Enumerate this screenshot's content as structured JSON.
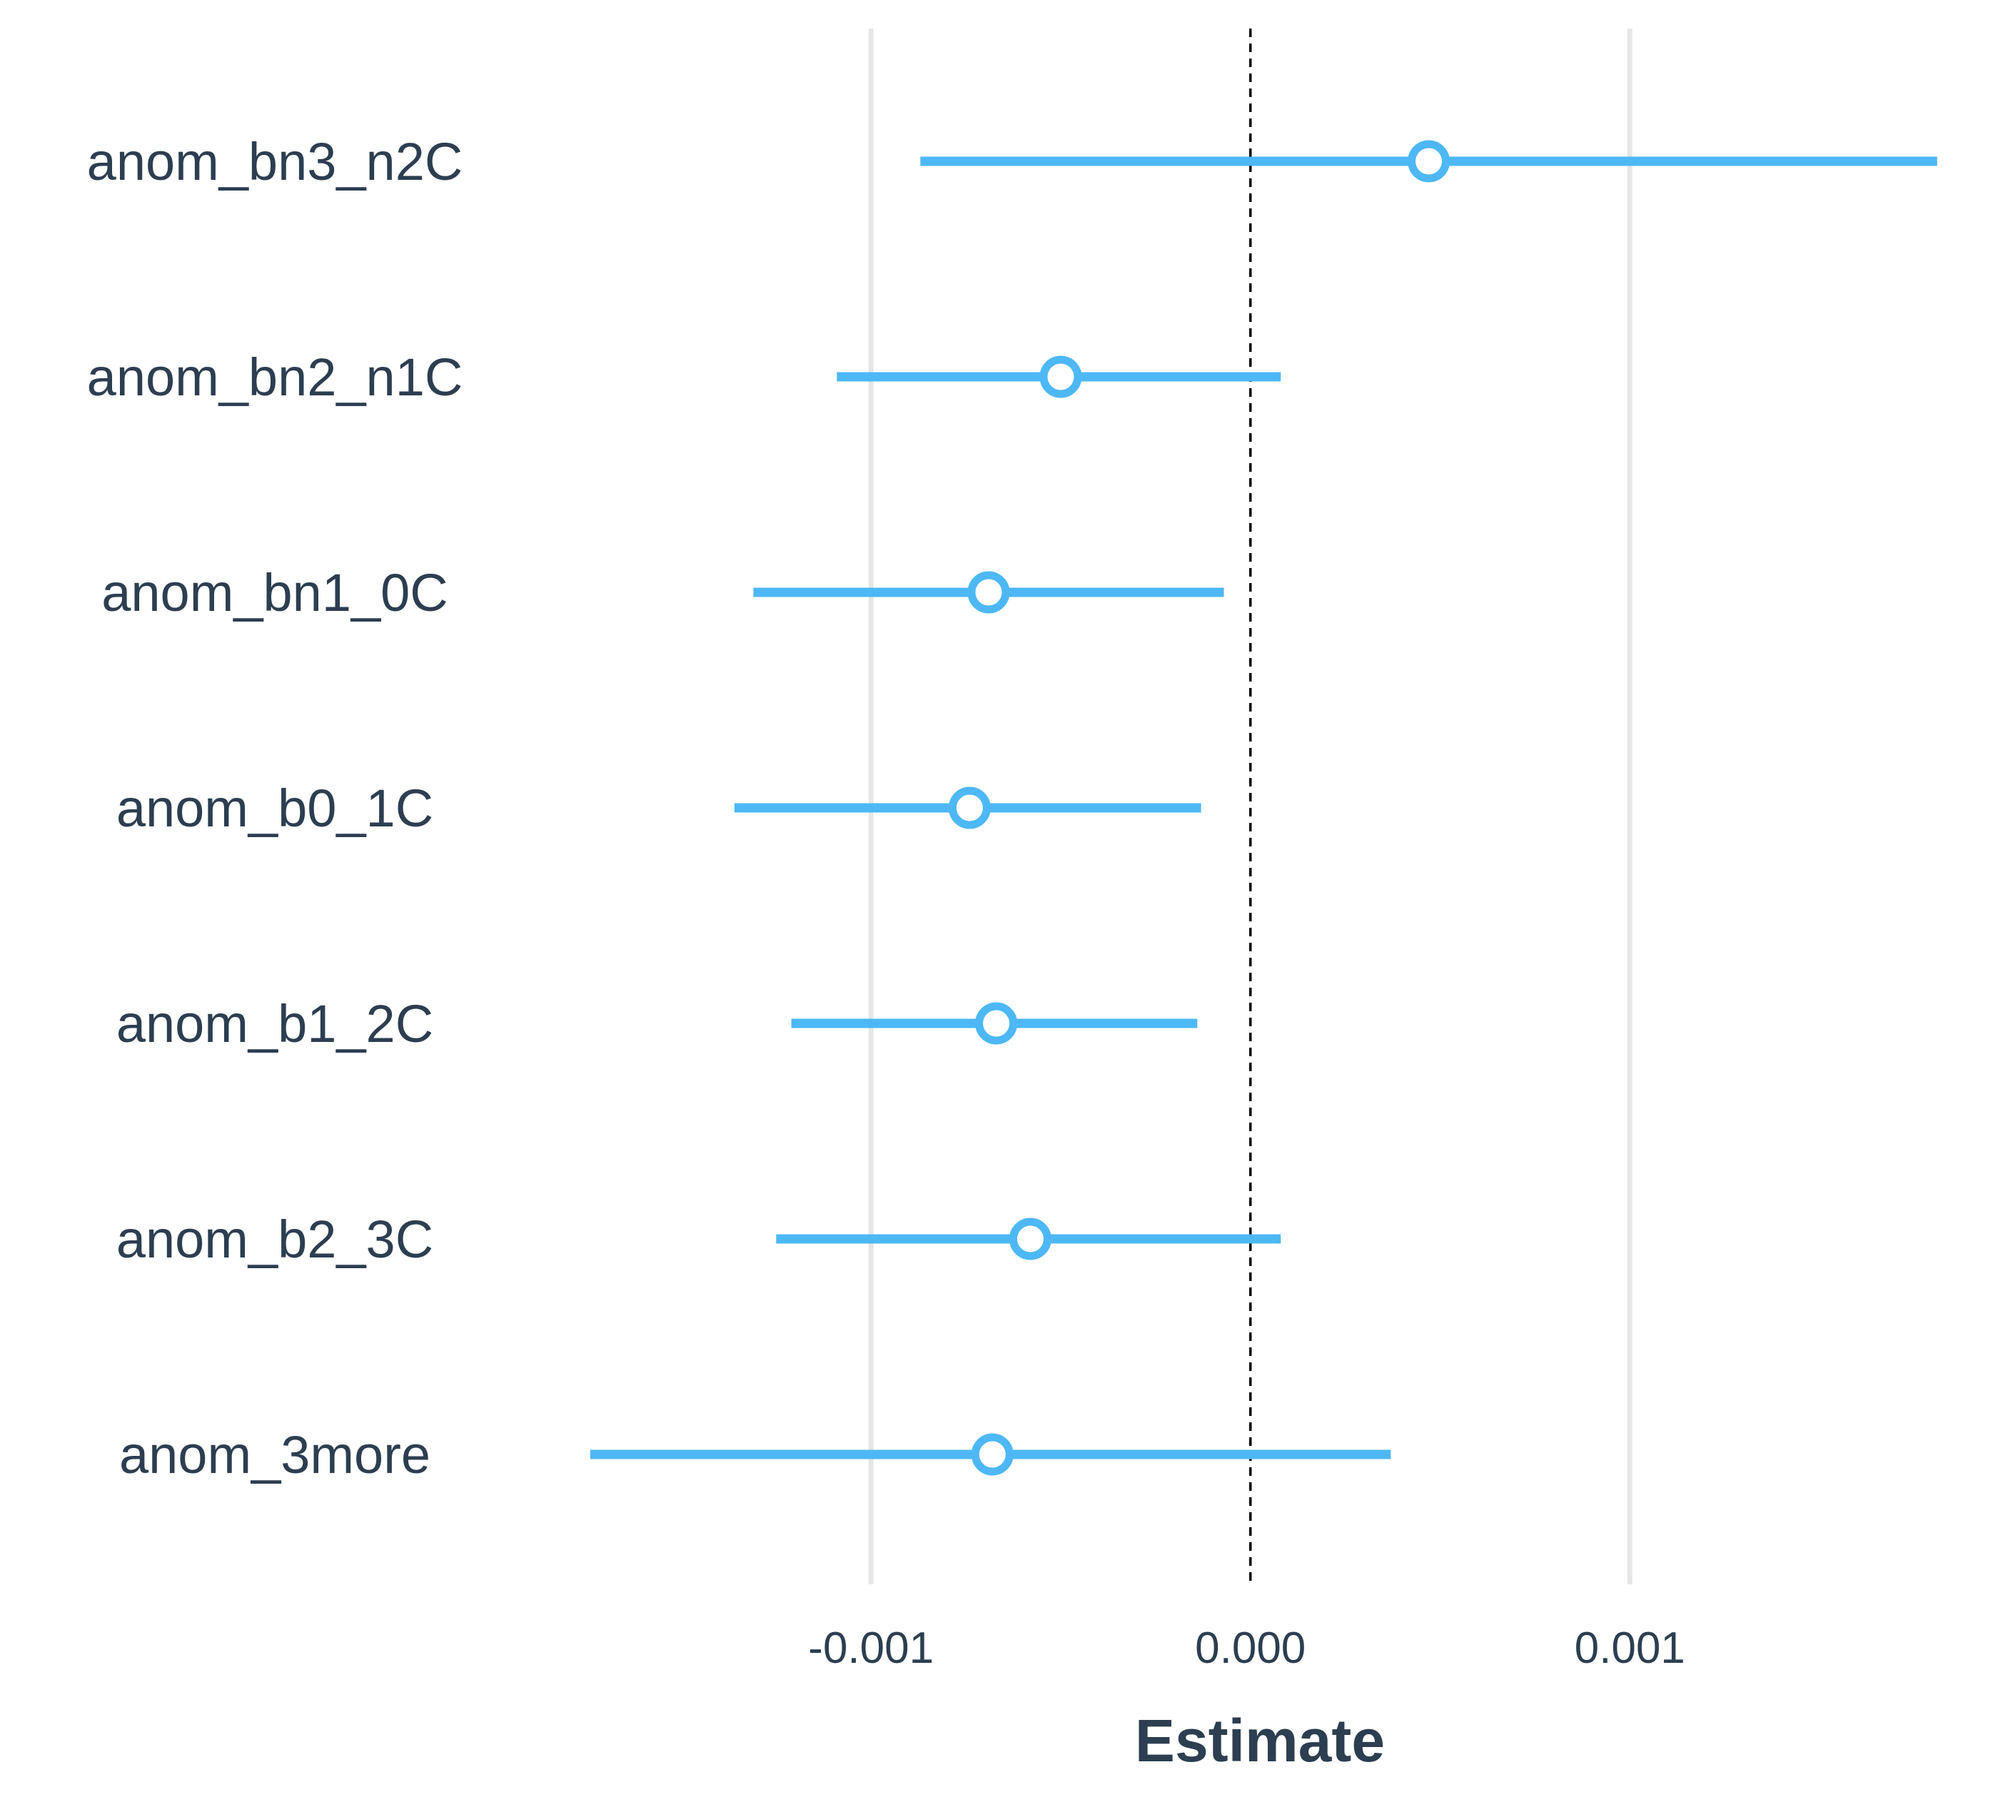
{
  "chart_data": {
    "type": "scatter",
    "subtype": "coefficient-plot",
    "title": "",
    "xlabel": "Estimate",
    "ylabel": "",
    "xlim": [
      -0.0018,
      0.00185
    ],
    "x_ticks": [
      -0.001,
      0.0,
      0.001
    ],
    "x_tick_labels": [
      "-0.001",
      "0.000",
      "0.001"
    ],
    "grid": "vertical major lines",
    "reference_line": {
      "x": 0.0,
      "style": "dashed",
      "color": "#000000"
    },
    "colors": {
      "series": "#4db8f5",
      "grid": "#e6e6e6",
      "text": "#2c3e50",
      "marker_fill": "#ffffff"
    },
    "categories": [
      "anom_bn3_n2C",
      "anom_bn2_n1C",
      "anom_bn1_0C",
      "anom_b0_1C",
      "anom_b1_2C",
      "anom_b2_3C",
      "anom_3more"
    ],
    "estimates": [
      0.00047,
      -0.0005,
      -0.00069,
      -0.00074,
      -0.00067,
      -0.00058,
      -0.00068
    ],
    "conf_low": [
      -0.00087,
      -0.00109,
      -0.00131,
      -0.00136,
      -0.00121,
      -0.00125,
      -0.00174
    ],
    "conf_high": [
      0.00181,
      8e-05,
      -7e-05,
      -0.00013,
      -0.00014,
      8e-05,
      0.00037
    ]
  }
}
